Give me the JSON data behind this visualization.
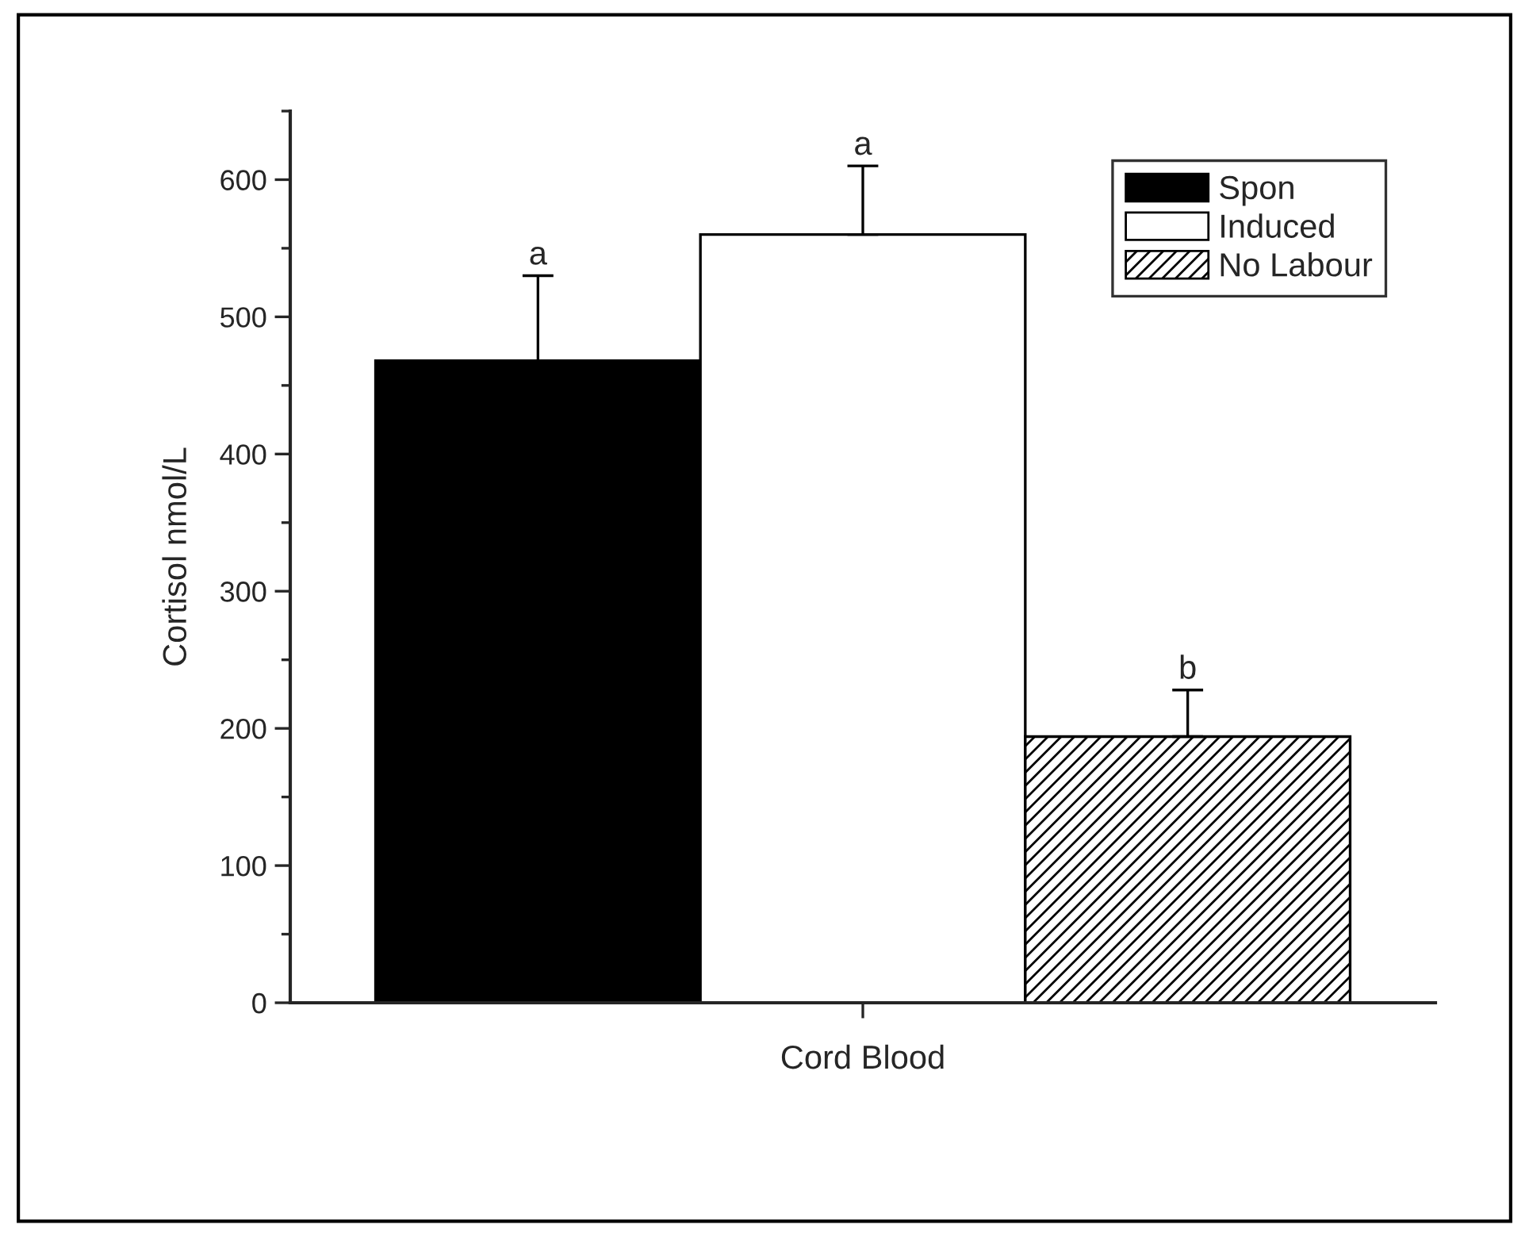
{
  "chart_data": {
    "type": "bar",
    "ylabel": "Cortisol nmol/L",
    "categories": [
      "Cord Blood"
    ],
    "series": [
      {
        "name": "Spon",
        "color": "#000000",
        "values": [
          468
        ],
        "errors": [
          [
            468,
            530
          ]
        ]
      },
      {
        "name": "Induced",
        "color": "#ffffff",
        "values": [
          560
        ],
        "errors": [
          [
            560,
            610
          ]
        ]
      },
      {
        "name": "No Labour",
        "color": "#000000",
        "values": [
          194
        ],
        "errors": [
          [
            194,
            228
          ]
        ]
      }
    ],
    "annotations": [
      "a",
      "a",
      "b"
    ],
    "ylim": [
      0,
      650
    ],
    "yticks": [
      0,
      100,
      200,
      300,
      400,
      500,
      600
    ],
    "grid": false,
    "legend": "top right"
  }
}
